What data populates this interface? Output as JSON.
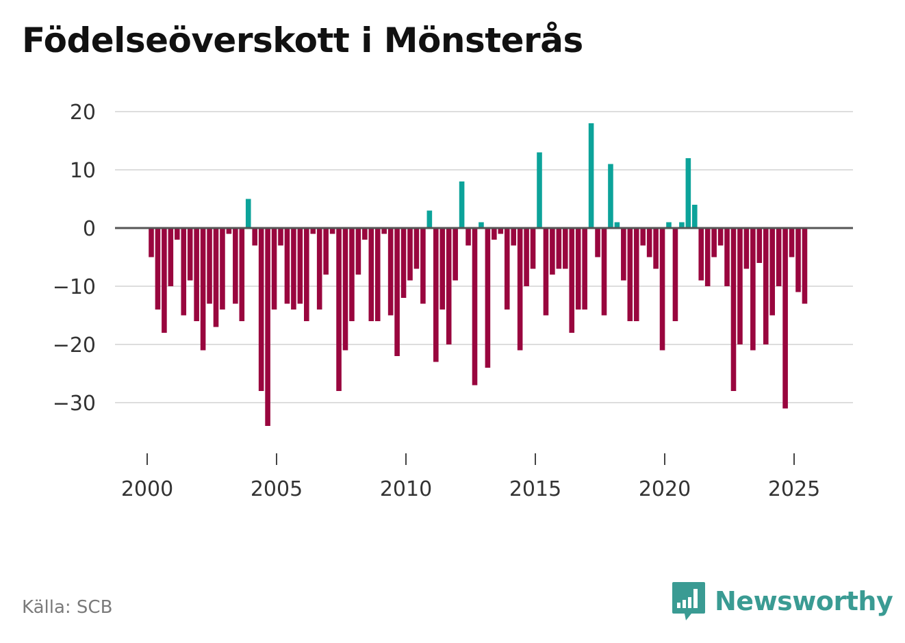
{
  "title": "Födelseöverskott i Mönsterås",
  "source": "Källa: SCB",
  "brand": {
    "name": "Newsworthy",
    "icon": "newsworthy-logo-icon"
  },
  "colors": {
    "positive": "#0ca39a",
    "negative": "#99063e",
    "zero_line": "#555555",
    "grid": "#dddddd",
    "text": "#333333"
  },
  "chart_data": {
    "type": "bar",
    "title": "Födelseöverskott i Mönsterås",
    "xlabel": "",
    "ylabel": "",
    "frequency": "quarterly",
    "x_start": 2000.0,
    "xlim": [
      1998.75,
      2027.25
    ],
    "ylim": [
      -38,
      22
    ],
    "yticks": [
      20,
      10,
      0,
      -10,
      -20,
      -30
    ],
    "ytick_labels": [
      "20",
      "10",
      "0",
      "−10",
      "−20",
      "−30"
    ],
    "xticks": [
      2000,
      2005,
      2010,
      2015,
      2020,
      2025
    ],
    "xtick_labels": [
      "2000",
      "2005",
      "2010",
      "2015",
      "2020",
      "2025"
    ],
    "values": [
      -5,
      -14,
      -18,
      -10,
      -2,
      -15,
      -9,
      -16,
      -21,
      -13,
      -17,
      -14,
      -1,
      -13,
      -16,
      5,
      -3,
      -28,
      -34,
      -14,
      -3,
      -13,
      -14,
      -13,
      -16,
      -1,
      -14,
      -8,
      -1,
      -28,
      -21,
      -16,
      -8,
      -2,
      -16,
      -16,
      -1,
      -15,
      -22,
      -12,
      -9,
      -7,
      -13,
      3,
      -23,
      -14,
      -20,
      -9,
      8,
      -3,
      -27,
      1,
      -24,
      -2,
      -1,
      -14,
      -3,
      -21,
      -10,
      -7,
      13,
      -15,
      -8,
      -7,
      -7,
      -18,
      -14,
      -14,
      18,
      -5,
      -15,
      11,
      1,
      -9,
      -16,
      -16,
      -3,
      -5,
      -7,
      -21,
      1,
      -16,
      1,
      12,
      4,
      -9,
      -10,
      -5,
      -3,
      -10,
      -28,
      -20,
      -7,
      -21,
      -6,
      -20,
      -15,
      -10,
      -31,
      -5,
      -11,
      -13
    ]
  }
}
